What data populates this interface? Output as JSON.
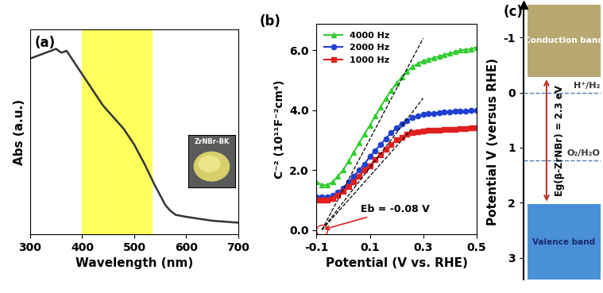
{
  "chart_data": [
    {
      "type": "line",
      "panel_label": "(a)",
      "x_label": "Wavelength (nm)",
      "y_label": "Abs (a.u.)",
      "x": [
        300,
        310,
        320,
        330,
        340,
        350,
        360,
        370,
        380,
        390,
        400,
        420,
        440,
        460,
        480,
        500,
        520,
        540,
        550,
        560,
        570,
        580,
        600,
        650,
        700
      ],
      "values": [
        0.9,
        0.91,
        0.92,
        0.93,
        0.94,
        0.95,
        0.93,
        0.94,
        0.9,
        0.86,
        0.82,
        0.74,
        0.66,
        0.6,
        0.54,
        0.46,
        0.36,
        0.25,
        0.2,
        0.15,
        0.12,
        0.1,
        0.09,
        0.07,
        0.06
      ],
      "color": "#333333",
      "xlim": [
        300,
        700
      ],
      "xticks": [
        300,
        400,
        500,
        600,
        700
      ],
      "ylim": [
        0,
        1.05
      ],
      "tick_labels": "x",
      "highlight_range": [
        400,
        535
      ],
      "inset_label": "ZrNBr-BK"
    },
    {
      "type": "line",
      "panel_label": "(b)",
      "x_label": "Potential (V vs. RHE)",
      "y_label": "C⁻² (10¹¹F⁻²cm⁴)",
      "x": [
        -0.1,
        -0.08,
        -0.06,
        -0.04,
        -0.02,
        0.0,
        0.02,
        0.04,
        0.06,
        0.08,
        0.1,
        0.12,
        0.14,
        0.16,
        0.18,
        0.2,
        0.22,
        0.24,
        0.26,
        0.28,
        0.3,
        0.32,
        0.34,
        0.36,
        0.38,
        0.4,
        0.42,
        0.44,
        0.46,
        0.48,
        0.5
      ],
      "series": [
        {
          "name": "4000 Hz",
          "color": "#33cc33",
          "marker": "triangle",
          "values": [
            1.6,
            1.5,
            1.5,
            1.6,
            1.8,
            2.0,
            2.3,
            2.6,
            2.9,
            3.2,
            3.5,
            3.8,
            4.1,
            4.4,
            4.65,
            4.9,
            5.1,
            5.3,
            5.45,
            5.55,
            5.65,
            5.7,
            5.75,
            5.8,
            5.85,
            5.9,
            5.95,
            6.0,
            6.02,
            6.05,
            6.1
          ]
        },
        {
          "name": "2000 Hz",
          "color": "#1f3fd0",
          "marker": "circle",
          "values": [
            1.1,
            1.1,
            1.1,
            1.15,
            1.25,
            1.4,
            1.6,
            1.8,
            2.0,
            2.2,
            2.45,
            2.65,
            2.85,
            3.05,
            3.25,
            3.4,
            3.55,
            3.65,
            3.75,
            3.8,
            3.85,
            3.88,
            3.9,
            3.92,
            3.94,
            3.95,
            3.96,
            3.97,
            3.98,
            3.99,
            4.0
          ]
        },
        {
          "name": "1000 Hz",
          "color": "#e02020",
          "marker": "square",
          "values": [
            1.0,
            1.0,
            1.0,
            1.05,
            1.15,
            1.3,
            1.45,
            1.6,
            1.8,
            2.0,
            2.15,
            2.35,
            2.5,
            2.7,
            2.85,
            3.0,
            3.1,
            3.2,
            3.25,
            3.28,
            3.3,
            3.32,
            3.33,
            3.34,
            3.35,
            3.36,
            3.37,
            3.38,
            3.39,
            3.4,
            3.42
          ]
        }
      ],
      "fit_lines": [
        {
          "x": [
            -0.08,
            0.3
          ],
          "values": [
            0,
            6.4
          ]
        },
        {
          "x": [
            -0.08,
            0.3
          ],
          "values": [
            0,
            4.4
          ]
        },
        {
          "x": [
            -0.08,
            0.26
          ],
          "values": [
            0,
            3.4
          ]
        }
      ],
      "annotation": {
        "text": "Eb = -0.08 V",
        "x": -0.08,
        "y": 0
      },
      "xlim": [
        -0.1,
        0.5
      ],
      "xticks": [
        -0.1,
        0.1,
        0.3,
        0.5
      ],
      "ylim": [
        -0.15,
        6.9
      ],
      "yticks": [
        {
          "value": 0,
          "label": "0.0"
        },
        {
          "value": 2,
          "label": "2.0"
        },
        {
          "value": 4,
          "label": "4.0"
        },
        {
          "value": 6,
          "label": "6.0"
        }
      ],
      "legend": "upper left"
    },
    {
      "type": "band_diagram",
      "panel_label": "(c)",
      "y_label": "Potential V (versus RHE)",
      "ylim": [
        3.4,
        -1.6
      ],
      "yticks": [
        -1,
        0,
        1,
        2,
        3
      ],
      "tick_labels": "y",
      "bands": [
        {
          "name": "Conduction band",
          "range": [
            -1.6,
            -0.28
          ],
          "color": "#b8a870"
        },
        {
          "name": "Valence band",
          "range": [
            2.02,
            3.4
          ],
          "color": "#4a90d9"
        }
      ],
      "levels": [
        {
          "name": "H⁺/H₂",
          "value": 0
        },
        {
          "name": "O₂/H₂O",
          "value": 1.23
        }
      ],
      "band_gap": {
        "label": "Eg(β-ZrNBr) = 2.3 eV",
        "from": -0.28,
        "to": 2.02
      }
    }
  ]
}
